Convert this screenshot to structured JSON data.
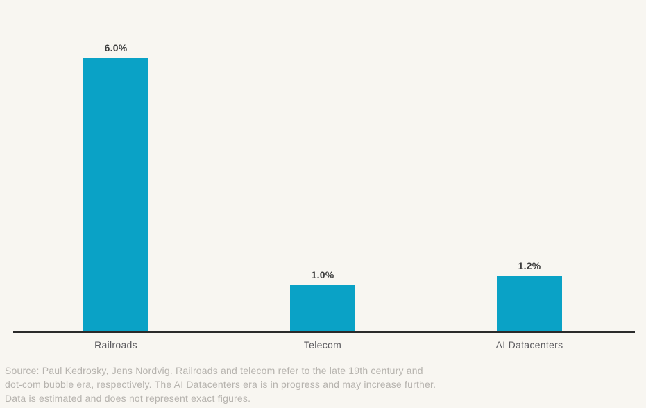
{
  "page": {
    "background_color": "#F8F6F1"
  },
  "chart_data": {
    "type": "bar",
    "title": "",
    "xlabel": "",
    "ylabel": "",
    "categories": [
      "Railroads",
      "Telecom",
      "AI Datacenters"
    ],
    "values": [
      6.0,
      1.0,
      1.2
    ],
    "value_labels": [
      "6.0%",
      "1.0%",
      "1.2%"
    ],
    "unit": "%",
    "ylim": [
      0,
      6.5
    ],
    "grid": false,
    "legend": "none",
    "bar_color": "#0AA2C6",
    "axis_color": "#2B2B2B",
    "value_label_color": "#3D3D3D",
    "category_label_color": "#5B5A5E",
    "source_note_color": "#B6B3AE",
    "source_note_lines": [
      "Source: Paul Kedrosky, Jens Nordvig. Railroads and telecom refer to the late 19th century and",
      "dot-com bubble era, respectively. The AI Datacenters era is in progress and may increase further.",
      "Data is estimated and does not represent exact figures."
    ]
  }
}
